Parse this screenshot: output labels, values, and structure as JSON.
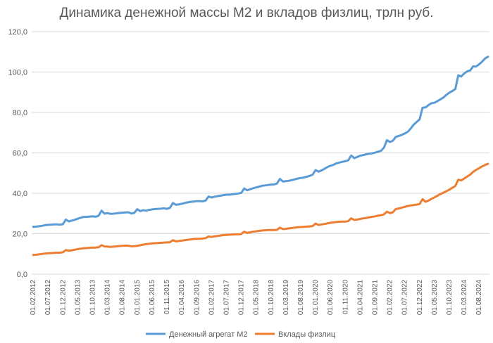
{
  "chart_data": {
    "type": "line",
    "title": "Динамика денежной массы М2 и вкладов физлиц, трлн руб.",
    "xlabel": "",
    "ylabel": "",
    "ylim": [
      0,
      120
    ],
    "yticks": [
      "0,0",
      "20,0",
      "40,0",
      "60,0",
      "80,0",
      "100,0",
      "120,0"
    ],
    "x_tick_labels": [
      "01.02.2012",
      "01.07.2012",
      "01.12.2012",
      "01.05.2013",
      "01.10.2013",
      "01.03.2014",
      "01.08.2014",
      "01.01.2015",
      "01.06.2015",
      "01.11.2015",
      "01.04.2016",
      "01.09.2016",
      "01.02.2017",
      "01.07.2017",
      "01.12.2017",
      "01.05.2018",
      "01.10.2018",
      "01.03.2019",
      "01.08.2019",
      "01.01.2020",
      "01.06.2020",
      "01.11.2020",
      "01.04.2021",
      "01.09.2021",
      "01.02.2022",
      "01.07.2022",
      "01.12.2022",
      "01.05.2023",
      "01.10.2023",
      "01.03.2024",
      "01.08.2024"
    ],
    "grid": true,
    "legend_position": "bottom",
    "x_start": "01.02.2012",
    "x_step": "1 month",
    "series": [
      {
        "name": "Денежный агрегат М2",
        "color": "#5b9bd5",
        "values": [
          23.4,
          23.5,
          23.7,
          23.9,
          24.2,
          24.4,
          24.5,
          24.6,
          24.6,
          24.5,
          24.7,
          27.0,
          26.1,
          26.5,
          26.9,
          27.4,
          27.9,
          28.3,
          28.3,
          28.5,
          28.6,
          28.4,
          28.9,
          31.4,
          29.9,
          30.2,
          29.8,
          29.9,
          30.1,
          30.3,
          30.4,
          30.5,
          30.6,
          30.0,
          30.3,
          32.1,
          31.2,
          31.6,
          31.4,
          31.8,
          32.0,
          32.2,
          32.3,
          32.4,
          32.6,
          32.3,
          32.8,
          35.2,
          34.3,
          34.5,
          34.8,
          35.2,
          35.5,
          35.8,
          35.9,
          36.1,
          36.1,
          36.0,
          36.4,
          38.4,
          37.9,
          38.3,
          38.6,
          38.8,
          39.1,
          39.3,
          39.3,
          39.5,
          39.7,
          39.9,
          40.2,
          42.4,
          41.5,
          42.0,
          42.5,
          42.9,
          43.3,
          43.7,
          43.9,
          44.1,
          44.3,
          44.4,
          44.8,
          47.1,
          45.8,
          46.0,
          46.2,
          46.5,
          46.9,
          47.3,
          47.6,
          47.8,
          48.2,
          48.6,
          49.2,
          51.5,
          50.7,
          51.3,
          52.1,
          53.0,
          53.6,
          54.1,
          54.8,
          55.2,
          55.6,
          55.9,
          56.3,
          58.7,
          57.4,
          58.0,
          58.6,
          58.9,
          59.3,
          59.6,
          59.8,
          60.1,
          60.6,
          61.0,
          62.6,
          66.3,
          65.4,
          66.0,
          67.9,
          68.4,
          68.9,
          69.6,
          70.4,
          72.0,
          74.0,
          75.3,
          76.6,
          82.4,
          82.5,
          83.7,
          84.6,
          84.8,
          85.6,
          86.5,
          87.4,
          88.7,
          89.8,
          90.6,
          91.6,
          98.4,
          97.8,
          99.3,
          100.3,
          100.8,
          102.8,
          102.7,
          103.8,
          105.1,
          106.7,
          107.6
        ]
      },
      {
        "name": "Вклады физлиц",
        "color": "#ed7d31",
        "values": [
          9.5,
          9.6,
          9.8,
          10.0,
          10.2,
          10.3,
          10.4,
          10.5,
          10.6,
          10.6,
          10.8,
          11.9,
          11.6,
          11.8,
          12.1,
          12.4,
          12.6,
          12.8,
          12.9,
          13.0,
          13.1,
          13.1,
          13.3,
          14.3,
          13.7,
          13.6,
          13.5,
          13.6,
          13.7,
          13.9,
          14.0,
          14.1,
          14.1,
          13.7,
          13.8,
          14.0,
          14.3,
          14.6,
          14.8,
          15.0,
          15.2,
          15.3,
          15.4,
          15.5,
          15.6,
          15.7,
          15.8,
          16.8,
          16.2,
          16.4,
          16.6,
          16.8,
          17.0,
          17.2,
          17.4,
          17.5,
          17.5,
          17.6,
          17.8,
          18.6,
          18.4,
          18.7,
          18.9,
          19.1,
          19.3,
          19.4,
          19.5,
          19.6,
          19.7,
          19.7,
          19.9,
          21.0,
          20.4,
          20.7,
          21.0,
          21.2,
          21.4,
          21.6,
          21.7,
          21.8,
          21.8,
          21.8,
          21.9,
          23.0,
          22.3,
          22.4,
          22.6,
          22.8,
          23.0,
          23.2,
          23.3,
          23.4,
          23.5,
          23.6,
          23.8,
          25.0,
          24.3,
          24.6,
          24.8,
          25.1,
          25.4,
          25.6,
          25.8,
          25.9,
          26.0,
          26.0,
          26.2,
          27.6,
          26.8,
          27.0,
          27.3,
          27.6,
          27.8,
          28.1,
          28.4,
          28.6,
          28.9,
          29.2,
          29.6,
          30.9,
          30.2,
          30.6,
          32.2,
          32.5,
          32.9,
          33.3,
          33.7,
          34.0,
          34.2,
          34.4,
          34.7,
          37.1,
          35.8,
          36.4,
          37.3,
          38.0,
          38.8,
          39.6,
          40.3,
          41.0,
          41.8,
          42.7,
          43.6,
          46.7,
          46.4,
          47.3,
          48.3,
          49.2,
          50.6,
          51.6,
          52.4,
          53.3,
          54.0,
          54.6
        ]
      }
    ]
  }
}
